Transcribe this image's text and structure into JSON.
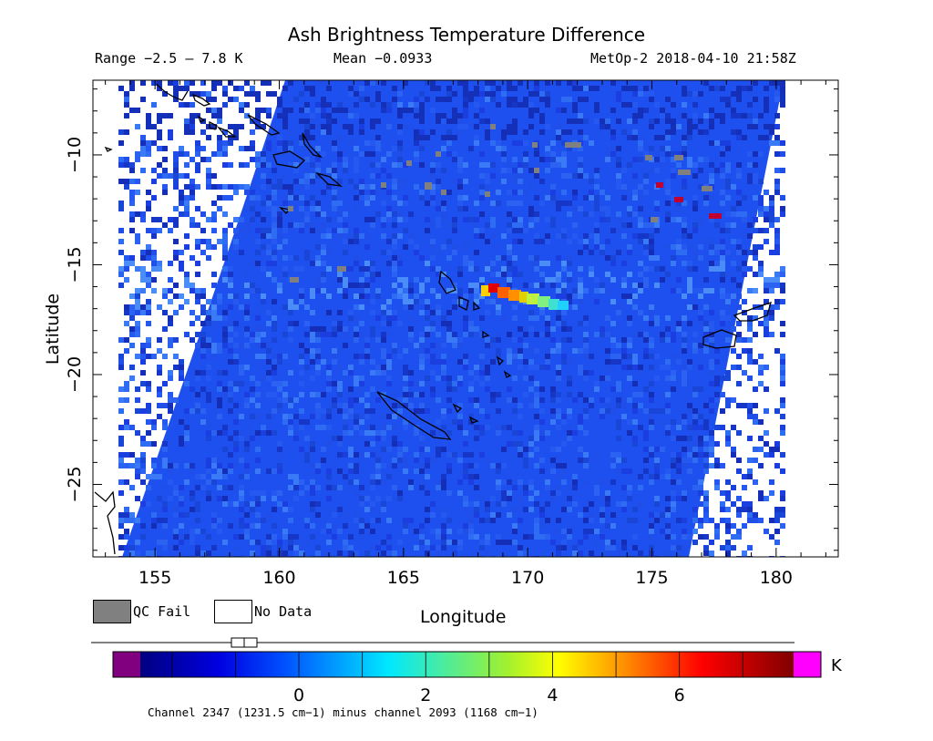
{
  "header": {
    "title": "Ash Brightness Temperature Difference",
    "range": "Range −2.5 – 7.8 K",
    "mean": "Mean −0.0933",
    "satellite_time": "MetOp-2 2018-04-10 21:58Z"
  },
  "axes": {
    "xlabel": "Longitude",
    "ylabel": "Latitude",
    "x_ticks": [
      155,
      160,
      165,
      170,
      175,
      180
    ],
    "x_tick_labels": [
      "155",
      "160",
      "165",
      "170",
      "175",
      "180"
    ],
    "y_ticks": [
      -10,
      -15,
      -20,
      -25
    ],
    "y_tick_labels": [
      "−10",
      "−15",
      "−20",
      "−25"
    ],
    "x_range": [
      152.5,
      182.5
    ],
    "y_range": [
      -28.3,
      -6.6
    ]
  },
  "legend": {
    "qc_fail": "QC Fail",
    "no_data": "No Data",
    "qc_fail_color": "#808080",
    "no_data_color": "#ffffff"
  },
  "colorbar": {
    "unit": "K",
    "range": [
      -2.5,
      7.8
    ],
    "tick_values": [
      0,
      2,
      4,
      6
    ],
    "tick_labels": [
      "0",
      "2",
      "4",
      "6"
    ],
    "under_color": "#800080",
    "over_color": "#ff00ff",
    "footnote": "Channel 2347 (1231.5 cm−1) minus channel 2093 (1168 cm−1)"
  },
  "colors": {
    "background_field": "#1e50f0",
    "swath_edge": "#ffffff",
    "plume_hot": "#c00000",
    "plume_warm": "#ff8000",
    "plume_mid": "#c0f040"
  }
}
